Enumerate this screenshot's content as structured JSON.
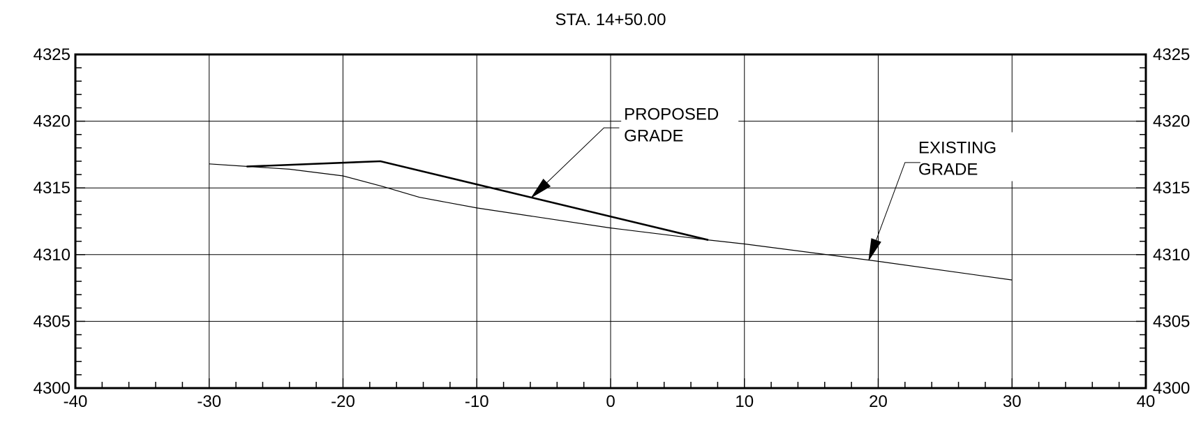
{
  "chart_data": {
    "type": "line",
    "title": "STA. 14+50.00",
    "xlabel": "",
    "ylabel": "",
    "xlim": [
      -40,
      40
    ],
    "ylim": [
      4300,
      4325
    ],
    "x_ticks": [
      -40,
      -30,
      -20,
      -10,
      0,
      10,
      20,
      30,
      40
    ],
    "x_tick_labels": [
      "-40",
      "-30",
      "-20",
      "-10",
      "0",
      "10",
      "20",
      "30",
      "40"
    ],
    "y_ticks": [
      4300,
      4305,
      4310,
      4315,
      4320,
      4325
    ],
    "y_tick_labels": [
      "4300",
      "4305",
      "4310",
      "4315",
      "4320",
      "4325"
    ],
    "x_minor_step": 2,
    "y_minor_step": 1,
    "grid": true,
    "y_axis_both_sides": true,
    "series": [
      {
        "id": "existing",
        "x": [
          -30,
          -27,
          -24,
          -20,
          -17,
          -14.3,
          -10,
          0,
          7.3,
          10,
          20,
          30
        ],
        "y": [
          4316.8,
          4316.6,
          4316.4,
          4315.9,
          4315.1,
          4314.3,
          4313.5,
          4312.0,
          4311.1,
          4310.8,
          4309.5,
          4308.1
        ]
      },
      {
        "id": "proposed",
        "x": [
          -27.2,
          -17.2,
          7.3
        ],
        "y": [
          4316.6,
          4317.0,
          4311.1
        ]
      }
    ],
    "annotations": [
      {
        "id": "proposed-label",
        "lines": [
          "PROPOSED",
          "GRADE"
        ],
        "anchor": [
          1.0,
          4320.1
        ],
        "leader_corner": [
          -0.5,
          4319.5
        ],
        "arrow_tip": [
          -5.9,
          4314.3
        ]
      },
      {
        "id": "existing-label",
        "lines": [
          "EXISTING",
          "GRADE"
        ],
        "anchor": [
          23.0,
          4317.6
        ],
        "leader_corner": [
          22.0,
          4316.9
        ],
        "arrow_tip": [
          19.3,
          4309.6
        ]
      }
    ]
  }
}
